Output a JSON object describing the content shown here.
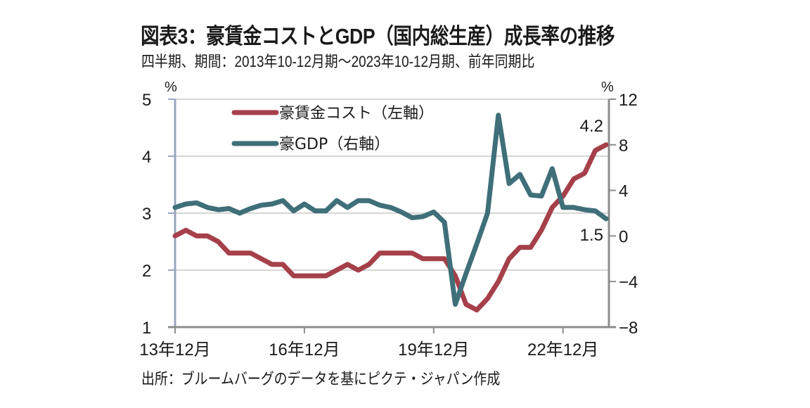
{
  "title": "図表3：豪賃金コストとGDP（国内総生産）成長率の推移",
  "subtitle": "四半期、期間：2013年10-12月期～2023年10-12月期、前年同期比",
  "source": "出所：ブルームバーグのデータを基にピクテ・ジャパン作成",
  "chart_data": {
    "type": "line",
    "title": "豪賃金コストとGDP（国内総生産）成長率の推移",
    "xlabel": "",
    "x_tick_labels": [
      "13年12月",
      "16年12月",
      "19年12月",
      "22年12月"
    ],
    "x_tick_indices": [
      0,
      12,
      24,
      36
    ],
    "x_count": 41,
    "left_axis": {
      "unit": "%",
      "ylim": [
        1,
        5
      ],
      "ticks": [
        1,
        2,
        3,
        4,
        5
      ],
      "tick_labels": [
        "1",
        "2",
        "3",
        "4",
        "5"
      ]
    },
    "right_axis": {
      "unit": "%",
      "ylim": [
        -8,
        12
      ],
      "ticks": [
        -8,
        -4,
        0,
        4,
        8,
        12
      ],
      "tick_labels": [
        "−8",
        "−4",
        "0",
        "4",
        "8",
        "12"
      ]
    },
    "grid": true,
    "legend_position": "top-left",
    "series": [
      {
        "name": "豪賃金コスト（左軸）",
        "axis": "left",
        "color": "#a5404a",
        "values": [
          2.6,
          2.7,
          2.6,
          2.6,
          2.5,
          2.3,
          2.3,
          2.3,
          2.2,
          2.1,
          2.1,
          1.9,
          1.9,
          1.9,
          1.9,
          2.0,
          2.1,
          2.0,
          2.1,
          2.3,
          2.3,
          2.3,
          2.3,
          2.2,
          2.2,
          2.2,
          1.9,
          1.4,
          1.3,
          1.5,
          1.8,
          2.2,
          2.4,
          2.4,
          2.7,
          3.1,
          3.3,
          3.6,
          3.7,
          4.1,
          4.2
        ],
        "end_label": "4.2"
      },
      {
        "name": "豪GDP（右軸）",
        "axis": "right",
        "color": "#3f6f78",
        "values": [
          2.5,
          2.8,
          2.9,
          2.5,
          2.3,
          2.4,
          2.0,
          2.4,
          2.7,
          2.8,
          3.1,
          2.2,
          2.8,
          2.2,
          2.2,
          3.1,
          2.5,
          3.1,
          3.1,
          2.7,
          2.5,
          2.1,
          1.6,
          1.7,
          2.1,
          1.2,
          -6.0,
          -3.3,
          -0.7,
          2.0,
          10.6,
          4.6,
          5.4,
          3.6,
          3.5,
          5.9,
          2.5,
          2.5,
          2.3,
          2.2,
          1.5
        ],
        "end_label": "1.5"
      }
    ]
  }
}
